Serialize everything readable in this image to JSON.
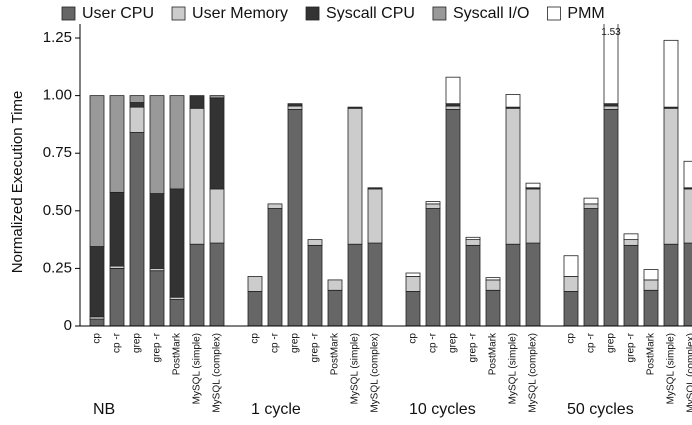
{
  "chart_data": {
    "type": "stacked_bar",
    "y_label": "Normalized Execution Time",
    "ylim": [
      0,
      1.3
    ],
    "yticks": [
      0,
      0.25,
      {
        "value": 0.5,
        "label": "0.50"
      },
      0.75,
      {
        "value": 1,
        "label": "1.00"
      },
      1.25
    ],
    "groups": [
      {
        "label": "NB",
        "categories": [
          "cp",
          "cp -r",
          "grep",
          "grep -r",
          "PostMark",
          "MySQL (simple)",
          "MySQL (complex)"
        ]
      },
      {
        "label": "1 cycle",
        "categories": [
          "cp",
          "cp -r",
          "grep",
          "grep -r",
          "PostMark",
          "MySQL (simple)",
          "MySQL (complex)"
        ]
      },
      {
        "label": "10 cycles",
        "categories": [
          "cp",
          "cp -r",
          "grep",
          "grep -r",
          "PostMark",
          "MySQL (simple)",
          "MySQL (complex)"
        ]
      },
      {
        "label": "50 cycles",
        "categories": [
          "cp",
          "cp -r",
          "grep",
          "grep -r",
          "PostMark",
          "MySQL (simple)",
          "MySQL (complex)"
        ]
      }
    ],
    "series": [
      {
        "name": "User CPU",
        "color": "#666666",
        "values": [
          [
            0.03,
            0.25,
            0.84,
            0.24,
            0.115,
            0.355,
            0.36
          ],
          [
            0.15,
            0.51,
            0.94,
            0.35,
            0.155,
            0.355,
            0.36
          ],
          [
            0.15,
            0.51,
            0.94,
            0.35,
            0.155,
            0.355,
            0.36
          ],
          [
            0.15,
            0.51,
            0.94,
            0.35,
            0.155,
            0.355,
            0.36
          ]
        ]
      },
      {
        "name": "User Memory",
        "color": "#cccccc",
        "values": [
          [
            0.01,
            0.01,
            0.11,
            0.01,
            0.01,
            0.59,
            0.235
          ],
          [
            0.065,
            0.02,
            0.015,
            0.025,
            0.045,
            0.59,
            0.235
          ],
          [
            0.065,
            0.02,
            0.015,
            0.025,
            0.045,
            0.59,
            0.235
          ],
          [
            0.065,
            0.02,
            0.015,
            0.025,
            0.045,
            0.59,
            0.235
          ]
        ]
      },
      {
        "name": "Syscall CPU",
        "color": "#333333",
        "values": [
          [
            0.305,
            0.32,
            0.02,
            0.325,
            0.47,
            0.055,
            0.395
          ],
          [
            0,
            0,
            0.01,
            0,
            0,
            0.005,
            0.005
          ],
          [
            0,
            0,
            0.01,
            0,
            0,
            0.005,
            0.005
          ],
          [
            0,
            0,
            0.01,
            0,
            0,
            0.005,
            0.005
          ]
        ]
      },
      {
        "name": "Syscall I/O",
        "color": "#999999",
        "values": [
          [
            0.655,
            0.42,
            0.03,
            0.425,
            0.405,
            0,
            0.01
          ],
          [
            0,
            0,
            0,
            0,
            0,
            0,
            0
          ],
          [
            0,
            0,
            0,
            0,
            0,
            0,
            0
          ],
          [
            0,
            0,
            0,
            0,
            0,
            0,
            0
          ]
        ]
      },
      {
        "name": "PMM",
        "color": "#ffffff",
        "values": [
          [
            0,
            0,
            0,
            0,
            0,
            0,
            0
          ],
          [
            0,
            0,
            0,
            0,
            0,
            0,
            0
          ],
          [
            0.015,
            0.01,
            0.115,
            0.01,
            0.01,
            0.055,
            0.02
          ],
          [
            0.09,
            0.025,
            0.565,
            0.025,
            0.045,
            0.29,
            0.115
          ]
        ]
      }
    ],
    "annotations": [
      "1.53"
    ]
  }
}
